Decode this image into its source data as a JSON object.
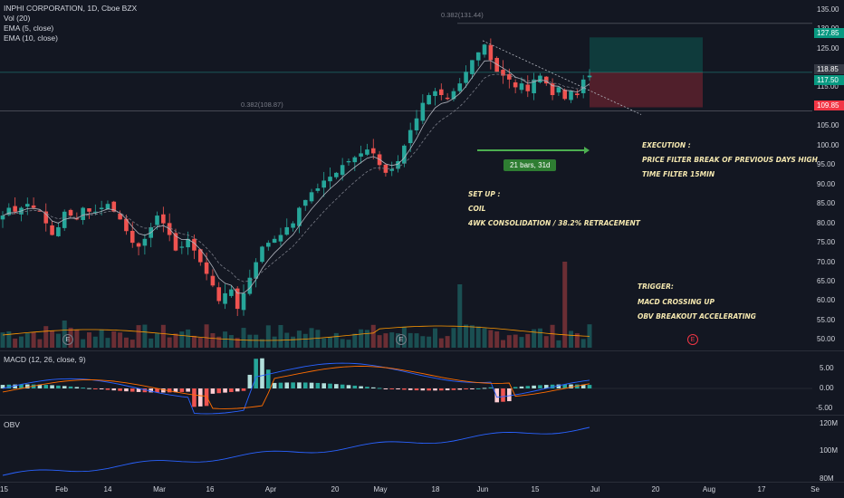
{
  "header": {
    "symbol_line": "INPHI CORPORATION, 1D, Cboe BZX",
    "vol_line": "Vol (20)",
    "ema5_line": "EMA (5, close)",
    "ema10_line": "EMA (10, close)"
  },
  "macd": {
    "label": "MACD (12, 26, close, 9)",
    "ticks": [
      "5.00",
      "0.00",
      "-5.00"
    ]
  },
  "obv": {
    "label": "OBV",
    "ticks": [
      "120M",
      "100M",
      "80M"
    ]
  },
  "price_axis": {
    "ticks": [
      "135.00",
      "130.00",
      "125.00",
      "120.00",
      "115.00",
      "110.00",
      "105.00",
      "100.00",
      "95.00",
      "90.00",
      "85.00",
      "80.00",
      "75.00",
      "70.00",
      "65.00",
      "60.00",
      "55.00",
      "50.00"
    ],
    "tags": [
      {
        "value": "127.85",
        "color": "#089981"
      },
      {
        "value": "118.85",
        "color": "#363a45"
      },
      {
        "value": "117.50",
        "color": "#089981"
      },
      {
        "value": "109.85",
        "color": "#f23645"
      }
    ]
  },
  "fib_labels": {
    "upper": "0.382(131.44)",
    "lower": "0.382(108.87)"
  },
  "measure_label": "21 bars, 31d",
  "annotations": {
    "execution_title": "EXECUTION :",
    "execution_1": "PRICE FILTER BREAK OF PREVIOUS DAYS HIGH",
    "execution_2": "TIME FILTER 15MIN",
    "setup_title": "SET UP :",
    "setup_1": "COIL",
    "setup_2": "4WK CONSOLIDATION / 38.2% RETRACEMENT",
    "trigger_title": "TRIGGER:",
    "trigger_1": "MACD CROSSING UP",
    "trigger_2": "OBV  BREAKOUT ACCELERATING"
  },
  "earnings_markers": [
    "E",
    "E",
    "E"
  ],
  "time_axis": [
    "15",
    "Feb",
    "14",
    "Mar",
    "16",
    "Apr",
    "20",
    "May",
    "18",
    "Jun",
    "15",
    "Jul",
    "20",
    "Aug",
    "17",
    "Se"
  ],
  "colors": {
    "up": "#26a69a",
    "down": "#ef5350",
    "background": "#131722",
    "annotation": "#f5e8b0"
  },
  "chart_data": {
    "type": "candlestick",
    "title": "INPHI CORPORATION, 1D, Cboe BZX",
    "ylim": [
      48,
      137
    ],
    "key_levels": {
      "target": 127.85,
      "entry": 118.85,
      "last": 117.5,
      "stop": 109.85,
      "fib_upper": 131.44,
      "fib_lower": 108.87
    },
    "closes": [
      82,
      84,
      83,
      84,
      85,
      84,
      83,
      80,
      77,
      79,
      83,
      82,
      81,
      84,
      83,
      83,
      84,
      85,
      83,
      81,
      78,
      75,
      74,
      76,
      79,
      82,
      80,
      77,
      73,
      74,
      76,
      73,
      70,
      67,
      64,
      60,
      62,
      63,
      58,
      62,
      66,
      70,
      74,
      75,
      76,
      77,
      79,
      80,
      84,
      86,
      88,
      89,
      91,
      92,
      93,
      95,
      96,
      97,
      98,
      99,
      98,
      95,
      93,
      94,
      96,
      100,
      104,
      107,
      111,
      113,
      114,
      113,
      112,
      114,
      116,
      119,
      122,
      124,
      126,
      122,
      119,
      118,
      117,
      115,
      116,
      114,
      117,
      118,
      116,
      113,
      115,
      112,
      114,
      113,
      117,
      118
    ],
    "macd": {
      "ticks": [
        5,
        0,
        -5
      ]
    },
    "obv": {
      "ticks": [
        "120M",
        "100M",
        "80M"
      ]
    }
  }
}
